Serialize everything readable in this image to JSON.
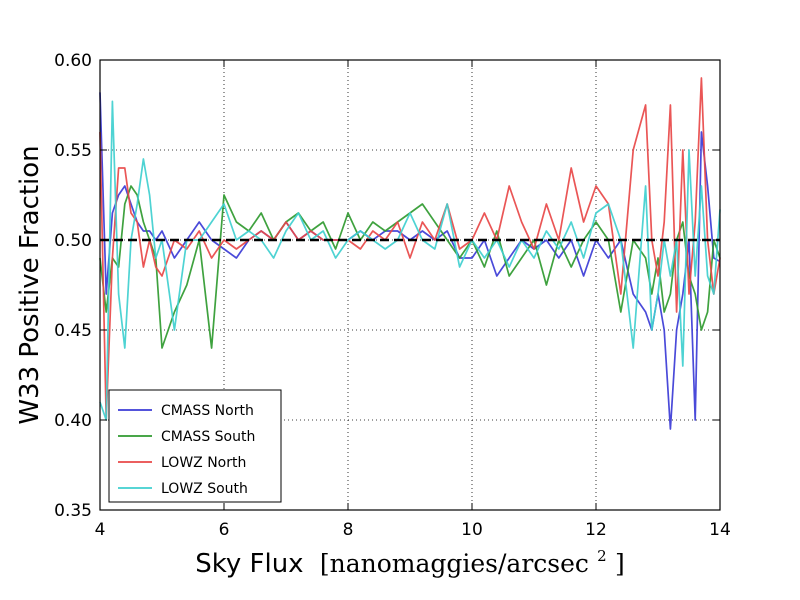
{
  "chart_data": {
    "type": "line",
    "title": "",
    "xlabel": "Sky Flux",
    "xlabel_unit": "[nanomaggies/arcsec",
    "xlabel_unit_exp": "2",
    "xlabel_unit_close": "]",
    "ylabel": "W33 Positive Fraction",
    "xlim": [
      4,
      14
    ],
    "ylim": [
      0.35,
      0.6
    ],
    "xticks": [
      "4",
      "6",
      "8",
      "10",
      "12",
      "14"
    ],
    "yticks": [
      "0.35",
      "0.40",
      "0.45",
      "0.50",
      "0.55",
      "0.60"
    ],
    "grid": true,
    "reference_line": 0.5,
    "legend_position": "lower-left",
    "series": [
      {
        "name": "CMASS North",
        "color": "#3b3bd6",
        "x": [
          4.0,
          4.1,
          4.2,
          4.3,
          4.4,
          4.5,
          4.6,
          4.7,
          4.8,
          4.9,
          5.0,
          5.2,
          5.4,
          5.6,
          5.8,
          6.0,
          6.2,
          6.4,
          6.6,
          6.8,
          7.0,
          7.2,
          7.4,
          7.6,
          7.8,
          8.0,
          8.2,
          8.4,
          8.6,
          8.8,
          9.0,
          9.2,
          9.4,
          9.6,
          9.8,
          10.0,
          10.2,
          10.4,
          10.6,
          10.8,
          11.0,
          11.2,
          11.4,
          11.6,
          11.8,
          12.0,
          12.2,
          12.4,
          12.6,
          12.8,
          12.9,
          13.0,
          13.1,
          13.2,
          13.3,
          13.4,
          13.5,
          13.6,
          13.7,
          13.8,
          13.9,
          14.0
        ],
        "y": [
          0.582,
          0.47,
          0.515,
          0.525,
          0.53,
          0.52,
          0.51,
          0.505,
          0.505,
          0.5,
          0.505,
          0.49,
          0.5,
          0.51,
          0.5,
          0.495,
          0.49,
          0.5,
          0.505,
          0.5,
          0.51,
          0.5,
          0.505,
          0.5,
          0.5,
          0.5,
          0.505,
          0.5,
          0.505,
          0.505,
          0.5,
          0.505,
          0.5,
          0.505,
          0.49,
          0.49,
          0.5,
          0.48,
          0.49,
          0.5,
          0.495,
          0.5,
          0.49,
          0.5,
          0.48,
          0.5,
          0.49,
          0.5,
          0.47,
          0.46,
          0.45,
          0.47,
          0.45,
          0.395,
          0.45,
          0.47,
          0.5,
          0.4,
          0.56,
          0.53,
          0.49,
          0.488
        ]
      },
      {
        "name": "CMASS South",
        "color": "#2f9a2f",
        "x": [
          4.0,
          4.1,
          4.2,
          4.3,
          4.4,
          4.5,
          4.6,
          4.7,
          4.8,
          4.9,
          5.0,
          5.2,
          5.4,
          5.6,
          5.8,
          6.0,
          6.2,
          6.4,
          6.6,
          6.8,
          7.0,
          7.2,
          7.4,
          7.6,
          7.8,
          8.0,
          8.2,
          8.4,
          8.6,
          8.8,
          9.0,
          9.2,
          9.4,
          9.6,
          9.8,
          10.0,
          10.2,
          10.4,
          10.6,
          10.8,
          11.0,
          11.2,
          11.4,
          11.6,
          11.8,
          12.0,
          12.2,
          12.4,
          12.6,
          12.8,
          12.9,
          13.0,
          13.1,
          13.2,
          13.3,
          13.4,
          13.5,
          13.6,
          13.7,
          13.8,
          13.9,
          14.0
        ],
        "y": [
          0.49,
          0.46,
          0.49,
          0.485,
          0.52,
          0.53,
          0.525,
          0.51,
          0.5,
          0.49,
          0.44,
          0.46,
          0.475,
          0.5,
          0.44,
          0.525,
          0.51,
          0.505,
          0.515,
          0.5,
          0.51,
          0.515,
          0.505,
          0.51,
          0.495,
          0.515,
          0.5,
          0.51,
          0.505,
          0.51,
          0.515,
          0.52,
          0.51,
          0.5,
          0.49,
          0.5,
          0.485,
          0.505,
          0.48,
          0.49,
          0.5,
          0.475,
          0.5,
          0.485,
          0.5,
          0.51,
          0.5,
          0.46,
          0.5,
          0.49,
          0.47,
          0.49,
          0.46,
          0.47,
          0.5,
          0.51,
          0.48,
          0.47,
          0.45,
          0.46,
          0.5,
          0.49
        ]
      },
      {
        "name": "LOWZ North",
        "color": "#e84848",
        "x": [
          4.0,
          4.1,
          4.2,
          4.3,
          4.4,
          4.5,
          4.6,
          4.7,
          4.8,
          4.9,
          5.0,
          5.2,
          5.4,
          5.6,
          5.8,
          6.0,
          6.2,
          6.4,
          6.6,
          6.8,
          7.0,
          7.2,
          7.4,
          7.6,
          7.8,
          8.0,
          8.2,
          8.4,
          8.6,
          8.8,
          9.0,
          9.2,
          9.4,
          9.6,
          9.8,
          10.0,
          10.2,
          10.4,
          10.6,
          10.8,
          11.0,
          11.2,
          11.4,
          11.6,
          11.8,
          12.0,
          12.2,
          12.4,
          12.6,
          12.8,
          12.9,
          13.0,
          13.1,
          13.2,
          13.3,
          13.4,
          13.5,
          13.6,
          13.7,
          13.8,
          13.9,
          14.0
        ],
        "y": [
          0.56,
          0.4,
          0.49,
          0.54,
          0.54,
          0.515,
          0.51,
          0.485,
          0.5,
          0.485,
          0.48,
          0.5,
          0.495,
          0.505,
          0.49,
          0.5,
          0.495,
          0.5,
          0.505,
          0.5,
          0.51,
          0.5,
          0.505,
          0.5,
          0.5,
          0.5,
          0.495,
          0.505,
          0.5,
          0.51,
          0.49,
          0.51,
          0.5,
          0.52,
          0.495,
          0.5,
          0.515,
          0.5,
          0.53,
          0.51,
          0.495,
          0.52,
          0.5,
          0.54,
          0.51,
          0.53,
          0.52,
          0.47,
          0.55,
          0.575,
          0.5,
          0.48,
          0.51,
          0.575,
          0.46,
          0.55,
          0.47,
          0.51,
          0.59,
          0.5,
          0.47,
          0.49
        ]
      },
      {
        "name": "LOWZ South",
        "color": "#3fcfcf",
        "x": [
          4.0,
          4.1,
          4.2,
          4.3,
          4.4,
          4.5,
          4.6,
          4.7,
          4.8,
          4.9,
          5.0,
          5.2,
          5.4,
          5.6,
          5.8,
          6.0,
          6.2,
          6.4,
          6.6,
          6.8,
          7.0,
          7.2,
          7.4,
          7.6,
          7.8,
          8.0,
          8.2,
          8.4,
          8.6,
          8.8,
          9.0,
          9.2,
          9.4,
          9.6,
          9.8,
          10.0,
          10.2,
          10.4,
          10.6,
          10.8,
          11.0,
          11.2,
          11.4,
          11.6,
          11.8,
          12.0,
          12.2,
          12.4,
          12.6,
          12.8,
          12.9,
          13.0,
          13.1,
          13.2,
          13.3,
          13.4,
          13.5,
          13.6,
          13.7,
          13.8,
          13.9,
          14.0
        ],
        "y": [
          0.41,
          0.4,
          0.577,
          0.47,
          0.44,
          0.5,
          0.52,
          0.545,
          0.525,
          0.49,
          0.5,
          0.45,
          0.5,
          0.5,
          0.51,
          0.52,
          0.5,
          0.505,
          0.5,
          0.49,
          0.505,
          0.515,
          0.5,
          0.505,
          0.49,
          0.5,
          0.505,
          0.5,
          0.495,
          0.5,
          0.515,
          0.5,
          0.495,
          0.52,
          0.485,
          0.5,
          0.49,
          0.5,
          0.485,
          0.5,
          0.49,
          0.505,
          0.495,
          0.51,
          0.49,
          0.515,
          0.52,
          0.5,
          0.44,
          0.53,
          0.45,
          0.47,
          0.5,
          0.48,
          0.5,
          0.43,
          0.55,
          0.48,
          0.53,
          0.48,
          0.47,
          0.517
        ]
      }
    ]
  }
}
